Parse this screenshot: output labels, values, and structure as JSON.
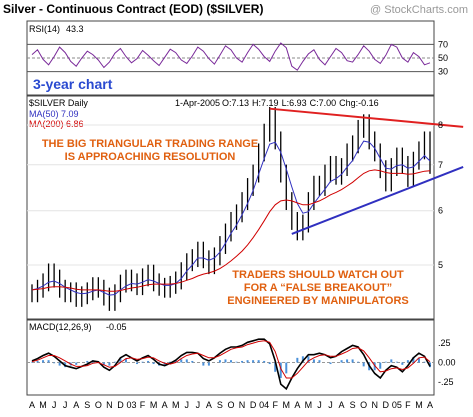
{
  "header": {
    "title": "Silver - Continuous Contract (EOD) ($SILVER)",
    "watermark": "@ StockCharts.com"
  },
  "chart_data": [
    {
      "type": "line",
      "panel": "rsi",
      "label": "RSI(14)",
      "label_value": "43.3",
      "ylim": [
        0,
        100
      ],
      "y_ticks": [
        30,
        50,
        70
      ],
      "reference_lines": [
        30,
        50,
        70
      ],
      "annotation": "3-year chart",
      "series": [
        {
          "color": "#7a2a9a",
          "values": [
            55,
            62,
            48,
            40,
            52,
            66,
            58,
            45,
            38,
            50,
            60,
            55,
            47,
            36,
            44,
            57,
            64,
            52,
            43,
            49,
            61,
            54,
            46,
            39,
            51,
            63,
            58,
            47,
            42,
            53,
            66,
            60,
            49,
            41,
            54,
            68,
            62,
            50,
            44,
            58,
            70,
            63,
            52,
            45,
            60,
            72,
            65,
            38,
            32,
            45,
            56,
            62,
            48,
            40,
            52,
            64,
            58,
            46,
            44,
            55,
            68,
            60,
            48,
            42,
            54,
            70,
            66,
            50,
            44,
            58,
            52,
            40,
            43
          ]
        }
      ]
    },
    {
      "type": "line",
      "panel": "price",
      "label": "$SILVER Daily",
      "date": "1-Apr-2005",
      "ohlc_text": {
        "open": "O:7.13",
        "high": "H:7.19",
        "low": "L:6.93",
        "close": "C:7.00",
        "change": "Chg:-0.16"
      },
      "ylim": [
        4.2,
        8.7
      ],
      "y_ticks": [
        5,
        6,
        7,
        8
      ],
      "scale": "log",
      "x_ticks": [
        "A",
        "M",
        "J",
        "J",
        "A",
        "S",
        "O",
        "N",
        "D",
        "03",
        "F",
        "M",
        "A",
        "M",
        "J",
        "J",
        "A",
        "S",
        "O",
        "N",
        "D",
        "04",
        "F",
        "M",
        "A",
        "M",
        "J",
        "J",
        "A",
        "S",
        "O",
        "N",
        "D",
        "05",
        "F",
        "M",
        "A"
      ],
      "series": [
        {
          "name": "$SILVER Daily",
          "color": "#000000",
          "values": [
            4.55,
            4.62,
            4.72,
            4.88,
            4.78,
            4.62,
            4.55,
            4.58,
            4.48,
            4.52,
            4.58,
            4.66,
            4.62,
            4.5,
            4.42,
            4.55,
            4.7,
            4.78,
            4.72,
            4.66,
            4.8,
            4.86,
            4.72,
            4.65,
            4.62,
            4.68,
            4.75,
            4.9,
            5.05,
            5.12,
            5.25,
            5.1,
            5.0,
            5.15,
            5.35,
            5.58,
            5.8,
            5.95,
            6.2,
            6.5,
            6.8,
            7.3,
            7.8,
            8.25,
            7.6,
            6.8,
            6.2,
            5.8,
            5.6,
            5.75,
            6.2,
            6.55,
            6.5,
            6.8,
            7.0,
            6.75,
            6.95,
            7.3,
            7.5,
            7.9,
            8.05,
            7.6,
            7.3,
            6.9,
            6.6,
            6.95,
            7.2,
            7.0,
            6.7,
            7.1,
            7.35,
            7.6,
            7.0
          ]
        },
        {
          "name": "MA(50)",
          "legend": "MA(50) 7.09",
          "color": "#3030c0",
          "values": [
            4.6,
            4.62,
            4.66,
            4.72,
            4.74,
            4.7,
            4.64,
            4.6,
            4.56,
            4.54,
            4.55,
            4.58,
            4.6,
            4.56,
            4.52,
            4.53,
            4.6,
            4.66,
            4.7,
            4.69,
            4.72,
            4.76,
            4.74,
            4.7,
            4.67,
            4.67,
            4.7,
            4.78,
            4.9,
            5.0,
            5.12,
            5.12,
            5.08,
            5.12,
            5.22,
            5.38,
            5.56,
            5.72,
            5.92,
            6.15,
            6.42,
            6.78,
            7.15,
            7.5,
            7.55,
            7.3,
            6.9,
            6.5,
            6.15,
            5.95,
            5.98,
            6.15,
            6.3,
            6.45,
            6.62,
            6.68,
            6.78,
            6.95,
            7.1,
            7.35,
            7.58,
            7.55,
            7.4,
            7.15,
            6.92,
            6.9,
            6.98,
            7.0,
            6.92,
            6.95,
            7.08,
            7.22,
            7.09
          ]
        },
        {
          "name": "MA(200)",
          "legend": "MA(200) 6.86",
          "color": "#d00000",
          "values": [
            4.6,
            4.61,
            4.62,
            4.64,
            4.65,
            4.65,
            4.64,
            4.63,
            4.61,
            4.6,
            4.6,
            4.6,
            4.6,
            4.59,
            4.58,
            4.58,
            4.59,
            4.61,
            4.63,
            4.64,
            4.66,
            4.68,
            4.69,
            4.69,
            4.69,
            4.69,
            4.7,
            4.72,
            4.75,
            4.78,
            4.82,
            4.85,
            4.87,
            4.9,
            4.94,
            5.0,
            5.07,
            5.15,
            5.24,
            5.35,
            5.48,
            5.63,
            5.8,
            5.98,
            6.12,
            6.2,
            6.22,
            6.2,
            6.16,
            6.12,
            6.12,
            6.16,
            6.2,
            6.26,
            6.33,
            6.38,
            6.44,
            6.52,
            6.6,
            6.7,
            6.8,
            6.86,
            6.88,
            6.86,
            6.82,
            6.8,
            6.8,
            6.8,
            6.78,
            6.79,
            6.82,
            6.85,
            6.86
          ]
        }
      ],
      "trend_lines": [
        {
          "color": "#e02020",
          "from": {
            "i": 43,
            "y": 8.45
          },
          "to": {
            "i": 78,
            "y": 7.95
          }
        },
        {
          "color": "#3030c0",
          "from": {
            "i": 47,
            "y": 5.55
          },
          "to": {
            "i": 78,
            "y": 6.95
          }
        }
      ],
      "annotations": [
        {
          "text": "THE BIG TRIANGULAR TRADING RANGE",
          "color": "#e06010"
        },
        {
          "text": "IS APPROACHING RESOLUTION",
          "color": "#e06010"
        },
        {
          "text": "TRADERS SHOULD WATCH OUT",
          "color": "#e06010"
        },
        {
          "text": "FOR A “FALSE BREAKOUT”",
          "color": "#e06010"
        },
        {
          "text": "ENGINEERED BY MANIPULATORS",
          "color": "#e06010"
        }
      ]
    },
    {
      "type": "line",
      "panel": "macd",
      "label": "MACD(12,26,9)",
      "label_value": "-0.05",
      "ylim": [
        -0.38,
        0.38
      ],
      "y_ticks": [
        ".25",
        "0.00",
        "-.25"
      ],
      "y_tick_values": [
        0.25,
        0.0,
        -0.25
      ],
      "series": [
        {
          "name": "MACD",
          "color": "#000000",
          "values": [
            0.02,
            0.05,
            0.09,
            0.12,
            0.08,
            0.02,
            -0.04,
            -0.06,
            -0.08,
            -0.05,
            -0.02,
            0.02,
            0.01,
            -0.06,
            -0.1,
            -0.04,
            0.06,
            0.1,
            0.06,
            0.02,
            0.06,
            0.09,
            0.04,
            -0.02,
            -0.04,
            -0.01,
            0.03,
            0.09,
            0.13,
            0.13,
            0.12,
            0.05,
            0.02,
            0.06,
            0.12,
            0.17,
            0.2,
            0.2,
            0.22,
            0.26,
            0.28,
            0.3,
            0.3,
            0.24,
            0.02,
            -0.28,
            -0.34,
            -0.2,
            -0.08,
            0.02,
            0.1,
            0.1,
            0.12,
            0.1,
            0.06,
            0.08,
            0.14,
            0.18,
            0.22,
            0.2,
            0.1,
            -0.04,
            -0.14,
            -0.2,
            -0.1,
            -0.04,
            -0.06,
            -0.12,
            -0.04,
            0.06,
            0.12,
            0.08,
            -0.05
          ]
        },
        {
          "name": "Signal",
          "color": "#d00000",
          "values": [
            0.01,
            0.03,
            0.06,
            0.09,
            0.09,
            0.06,
            0.02,
            -0.02,
            -0.05,
            -0.05,
            -0.04,
            -0.01,
            0.0,
            -0.03,
            -0.06,
            -0.05,
            0.0,
            0.05,
            0.06,
            0.04,
            0.05,
            0.07,
            0.06,
            0.02,
            -0.01,
            -0.02,
            0.0,
            0.05,
            0.09,
            0.11,
            0.12,
            0.09,
            0.06,
            0.06,
            0.09,
            0.13,
            0.17,
            0.19,
            0.2,
            0.23,
            0.25,
            0.27,
            0.28,
            0.26,
            0.14,
            -0.08,
            -0.2,
            -0.2,
            -0.14,
            -0.06,
            0.02,
            0.06,
            0.09,
            0.1,
            0.08,
            0.08,
            0.11,
            0.14,
            0.18,
            0.19,
            0.15,
            0.06,
            -0.04,
            -0.12,
            -0.11,
            -0.08,
            -0.07,
            -0.09,
            -0.07,
            -0.01,
            0.06,
            0.07,
            0.01
          ]
        }
      ]
    }
  ]
}
